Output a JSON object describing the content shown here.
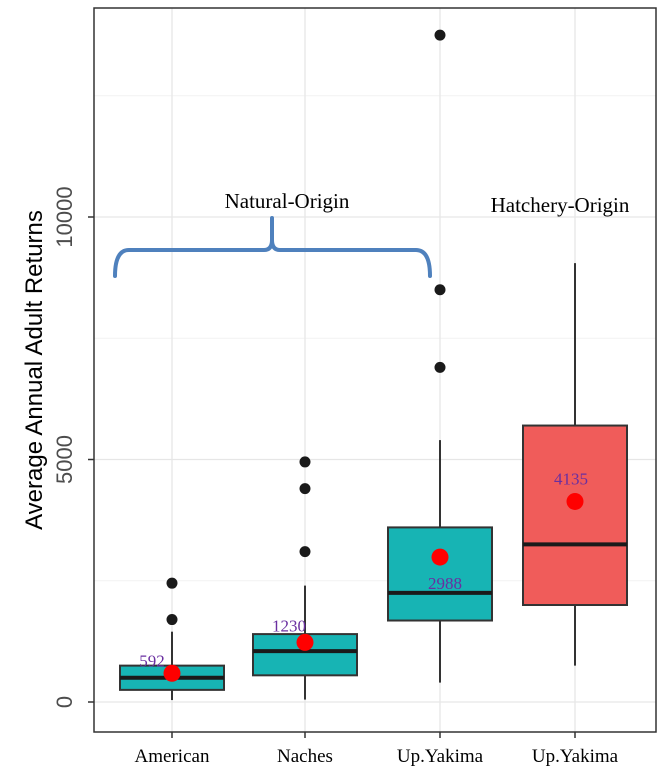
{
  "chart_data": {
    "type": "box",
    "ylabel": "Average Annual Adult Returns",
    "xlabel": "",
    "ylim": [
      -200,
      13900
    ],
    "yticks": [
      0,
      5000,
      10000
    ],
    "grid": true,
    "categories": [
      "American",
      "Naches",
      "Up.Yakima",
      "Up.Yakima"
    ],
    "boxes": [
      {
        "category": "American",
        "min": 40,
        "q1": 250,
        "median": 500,
        "q3": 750,
        "max": 1450,
        "mean": 592,
        "mean_label": "592",
        "outliers": [
          1700,
          2450
        ],
        "fill": "#17b4b4"
      },
      {
        "category": "Naches",
        "min": 50,
        "q1": 550,
        "median": 1050,
        "q3": 1400,
        "max": 2400,
        "mean": 1230,
        "mean_label": "1230",
        "outliers": [
          3100,
          4400,
          4950
        ],
        "fill": "#17b4b4"
      },
      {
        "category": "Up.Yakima",
        "min": 400,
        "q1": 1680,
        "median": 2250,
        "q3": 3600,
        "max": 5400,
        "mean": 2988,
        "mean_label": "2988",
        "outliers": [
          6900,
          8500,
          13750
        ],
        "fill": "#17b4b4"
      },
      {
        "category": "Up.Yakima",
        "min": 750,
        "q1": 2000,
        "median": 3250,
        "q3": 5700,
        "max": 9050,
        "mean": 4135,
        "mean_label": "4135",
        "outliers": [],
        "fill": "#f05c5a"
      }
    ],
    "annotations": {
      "natural": "Natural-Origin",
      "hatchery": "Hatchery-Origin"
    },
    "colors": {
      "mean_point": "#ff0000",
      "outlier": "#1a1a1a",
      "brace": "#4f81bd",
      "mean_label": "#6a2fa0"
    }
  }
}
